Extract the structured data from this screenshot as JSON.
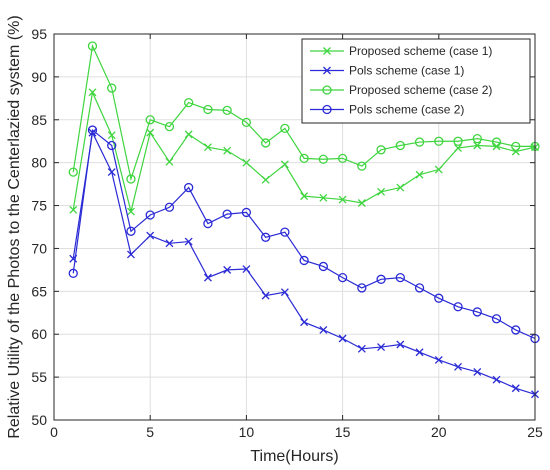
{
  "chart_data": {
    "type": "line",
    "title": "",
    "xlabel": "Time(Hours)",
    "ylabel": "Relative Utility of the Photos to the Centerlazied system (%)",
    "xlim": [
      0,
      25
    ],
    "ylim": [
      50,
      95
    ],
    "xticks": [
      0,
      5,
      10,
      15,
      20,
      25
    ],
    "yticks": [
      50,
      55,
      60,
      65,
      70,
      75,
      80,
      85,
      90,
      95
    ],
    "grid": true,
    "legend_position": "top-right",
    "x": [
      1,
      2,
      3,
      4,
      5,
      6,
      7,
      8,
      9,
      10,
      11,
      12,
      13,
      14,
      15,
      16,
      17,
      18,
      19,
      20,
      21,
      22,
      23,
      24,
      25
    ],
    "series": [
      {
        "name": "Proposed scheme (case 1)",
        "color": "#3fd53f",
        "marker": "x",
        "values": [
          74.5,
          88.2,
          83.2,
          74.3,
          83.5,
          80.1,
          83.3,
          81.8,
          81.4,
          80.0,
          78.0,
          79.8,
          76.1,
          75.9,
          75.7,
          75.3,
          76.6,
          77.1,
          78.6,
          79.2,
          81.7,
          82.0,
          81.9,
          81.3,
          81.8
        ]
      },
      {
        "name": "Pols scheme (case 1)",
        "color": "#2a2ad6",
        "marker": "x",
        "values": [
          68.8,
          83.5,
          78.9,
          69.3,
          71.5,
          70.6,
          70.8,
          66.6,
          67.5,
          67.6,
          64.5,
          64.9,
          61.4,
          60.5,
          59.5,
          58.3,
          58.5,
          58.8,
          57.9,
          57.0,
          56.2,
          55.6,
          54.7,
          53.7,
          53.0
        ]
      },
      {
        "name": "Proposed scheme (case 2)",
        "color": "#3fd53f",
        "marker": "o",
        "values": [
          78.9,
          93.6,
          88.7,
          78.1,
          85.0,
          84.2,
          87.0,
          86.2,
          86.1,
          84.7,
          82.3,
          84.0,
          80.5,
          80.4,
          80.5,
          79.6,
          81.5,
          82.0,
          82.4,
          82.5,
          82.5,
          82.8,
          82.4,
          81.9,
          81.9
        ]
      },
      {
        "name": "Pols scheme (case 2)",
        "color": "#2a2ad6",
        "marker": "o",
        "values": [
          67.1,
          83.8,
          82.0,
          72.0,
          73.9,
          74.8,
          77.1,
          72.9,
          74.0,
          74.2,
          71.3,
          71.9,
          68.6,
          67.9,
          66.6,
          65.4,
          66.4,
          66.6,
          65.4,
          64.2,
          63.2,
          62.6,
          61.8,
          60.5,
          59.5
        ]
      }
    ]
  }
}
